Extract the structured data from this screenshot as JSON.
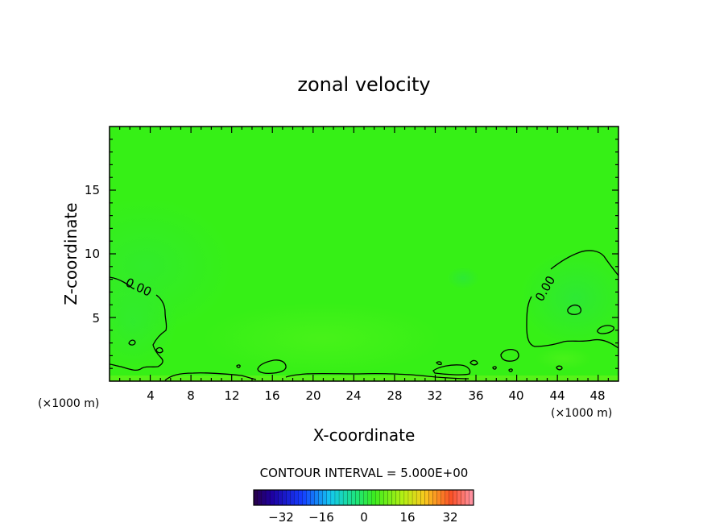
{
  "chart_data": {
    "type": "heatmap",
    "title": "zonal velocity",
    "xlabel": "X-coordinate",
    "ylabel": "Z-coordinate",
    "x_unit_label": "(×1000 m)",
    "x_unit_label_right": "(×1000 m)",
    "xlim": [
      0,
      50
    ],
    "ylim": [
      0,
      20
    ],
    "x_ticks": [
      "4",
      "8",
      "12",
      "16",
      "20",
      "24",
      "28",
      "32",
      "36",
      "40",
      "44",
      "48"
    ],
    "y_ticks": [
      "5",
      "10",
      "15"
    ],
    "contour_labels": [
      "0.00",
      "0.00"
    ],
    "contour_interval_text": "CONTOUR INTERVAL = 5.000E+00",
    "colorbar_ticks": [
      "−32",
      "−16",
      "0",
      "16",
      "32"
    ],
    "colorbar_range": [
      -40,
      40
    ],
    "field_value_range": [
      -3,
      3
    ],
    "colors": {
      "field_base": "#34f014",
      "field_positive": "#4cf21c",
      "field_negative": "#2ee83c",
      "contour": "#000000"
    }
  }
}
